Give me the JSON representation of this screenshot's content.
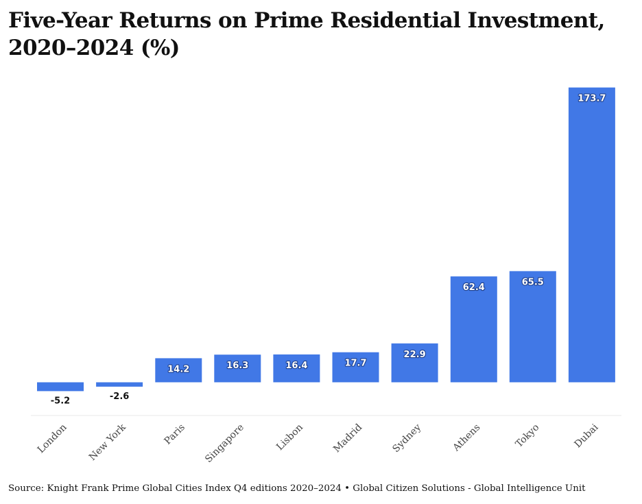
{
  "chart_data": {
    "type": "bar",
    "title": "Five-Year Returns on Prime Residential Investment, 2020–2024 (%)",
    "categories": [
      "London",
      "New York",
      "Paris",
      "Singapore",
      "Lisbon",
      "Madrid",
      "Sydney",
      "Athens",
      "Tokyo",
      "Dubai"
    ],
    "values": [
      -5.2,
      -2.6,
      14.2,
      16.3,
      16.4,
      17.7,
      22.9,
      62.4,
      65.5,
      173.7
    ],
    "data_labels": [
      "-5.2",
      "-2.6",
      "14.2",
      "16.3",
      "16.4",
      "17.7",
      "22.9",
      "62.4",
      "65.5",
      "173.7"
    ],
    "xlabel": "",
    "ylabel": "",
    "ylim": [
      -20,
      180
    ],
    "grid": false,
    "bar_color": "#4178e6",
    "source": "Source: Knight Frank Prime Global Cities Index Q4 editions 2020–2024 • Global Citizen Solutions - Global Intelligence Unit"
  }
}
